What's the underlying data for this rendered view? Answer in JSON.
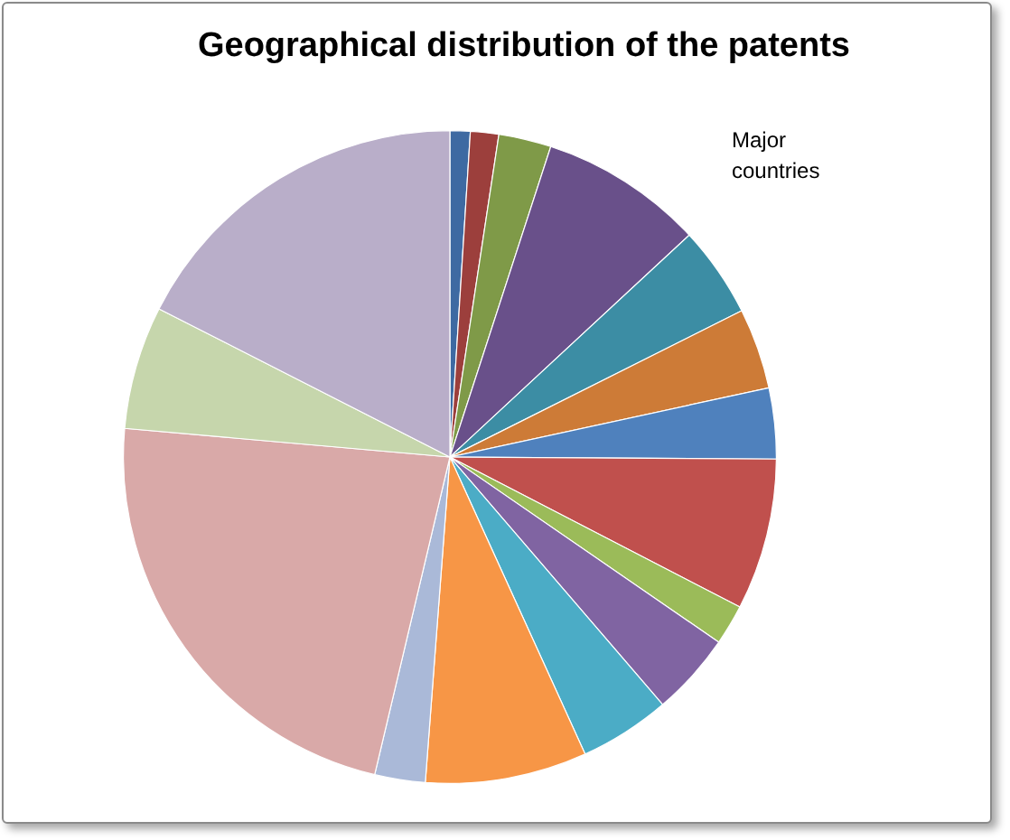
{
  "chart_data": {
    "type": "pie",
    "title": "Geographical distribution of the patents",
    "legend_title": "Major countries",
    "categories": [
      null,
      null,
      null,
      null,
      null,
      null,
      null,
      null,
      null,
      null,
      null,
      null,
      null,
      null,
      null,
      null
    ],
    "values": [
      1,
      1.4,
      2.6,
      8.1,
      4.5,
      4,
      3.5,
      7.5,
      2,
      4.1,
      4.5,
      8,
      2.5,
      22.7,
      6.1,
      17.5
    ],
    "colors": [
      "#3e6aa2",
      "#9c3f3c",
      "#7f9a48",
      "#69508a",
      "#3c8da4",
      "#cd7b37",
      "#4f81bd",
      "#c0504d",
      "#9bbb59",
      "#8064a2",
      "#4bacc6",
      "#f79646",
      "#aab9d8",
      "#d9a9a8",
      "#c6d6ac",
      "#b9aec9"
    ]
  }
}
